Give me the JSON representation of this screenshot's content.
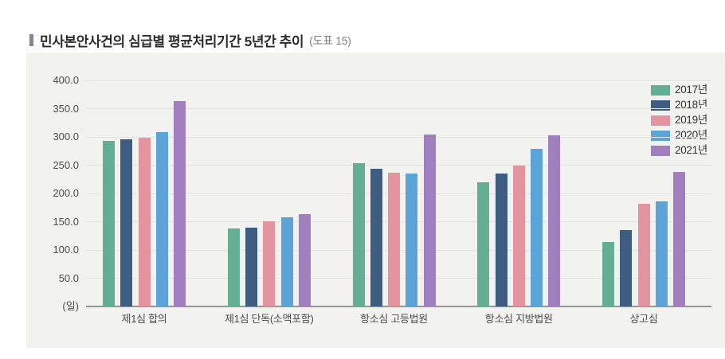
{
  "header": {
    "title": "민사본안사건의 심급별 평균처리기간 5년간 추이",
    "figure_tag": "(도표 15)",
    "bullet_color": "#8f7f9a"
  },
  "chart_data": {
    "type": "bar",
    "title": "민사본안사건의 심급별 평균처리기간 5년간 추이",
    "unit_label": "(일)",
    "categories": [
      "제1심 합의",
      "제1심 단독(소액포함)",
      "항소심 고등법원",
      "항소심 지방법원",
      "상고심"
    ],
    "series": [
      {
        "name": "2017년",
        "color": "#63ae94",
        "values": [
          293,
          138,
          254,
          220,
          114
        ]
      },
      {
        "name": "2018년",
        "color": "#3f5c82",
        "values": [
          296,
          139,
          243,
          235,
          135
        ]
      },
      {
        "name": "2019년",
        "color": "#e4949f",
        "values": [
          298,
          151,
          236,
          249,
          181
        ]
      },
      {
        "name": "2020년",
        "color": "#5ca3d8",
        "values": [
          309,
          158,
          235,
          279,
          186
        ]
      },
      {
        "name": "2021년",
        "color": "#a17ebd",
        "values": [
          363,
          164,
          304,
          303,
          238
        ]
      }
    ],
    "ylim": [
      0,
      400
    ],
    "ytick_step": 50,
    "yticks": [
      {
        "value": 400,
        "label": "400.0"
      },
      {
        "value": 350,
        "label": "350.0"
      },
      {
        "value": 300,
        "label": "300.0"
      },
      {
        "value": 250,
        "label": "250.0"
      },
      {
        "value": 200,
        "label": "200.0"
      },
      {
        "value": 150,
        "label": "150.0"
      },
      {
        "value": 100,
        "label": "100.0"
      },
      {
        "value": 50,
        "label": "50.0"
      }
    ],
    "grid": true,
    "legend_position": "top-right",
    "colors": {
      "panel_background": "#f2f2f0",
      "gridline": "#e3e3e1",
      "axis_line": "#959595",
      "tick_text": "#4c4c4c",
      "legend_text": "#333333"
    }
  }
}
